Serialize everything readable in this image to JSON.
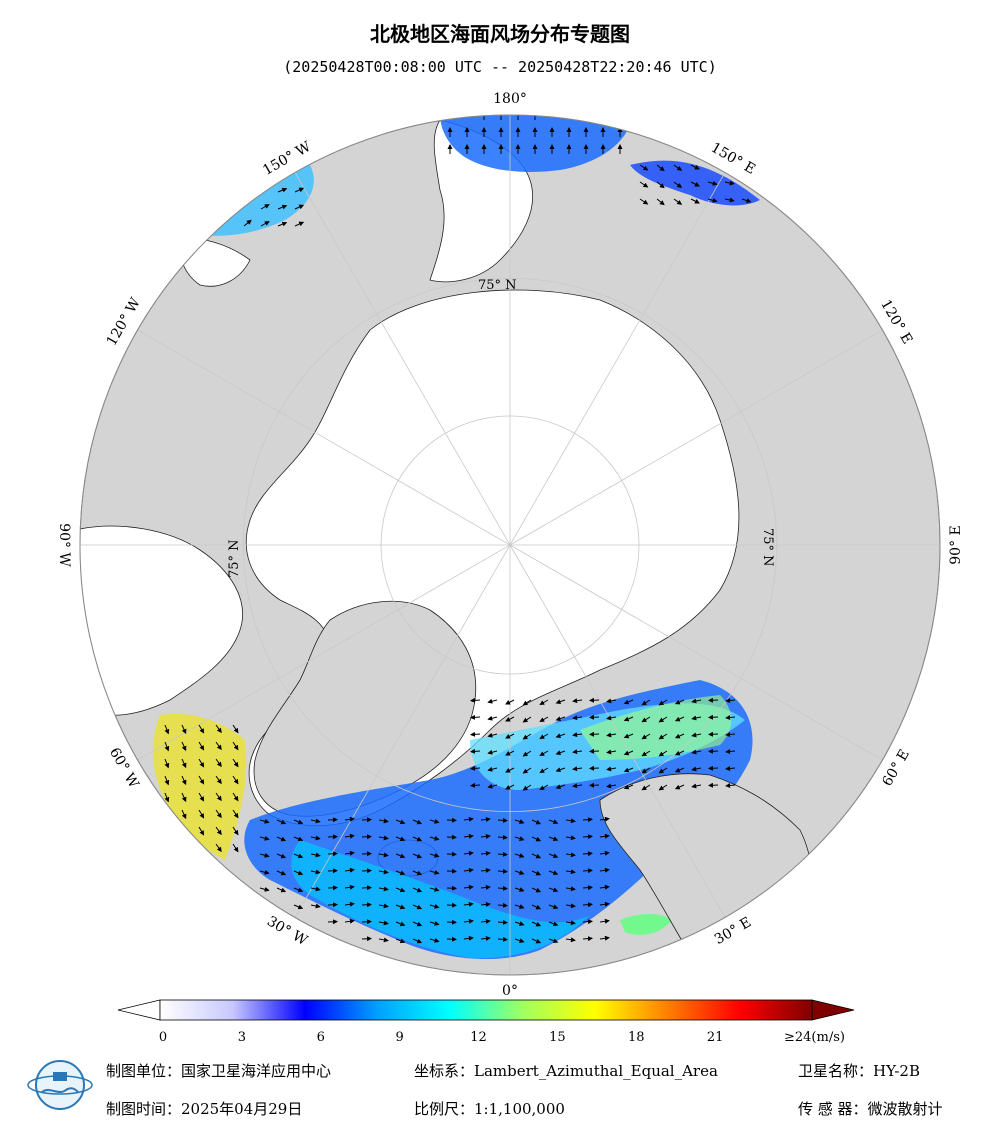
{
  "title": "北极地区海面风场分布专题图",
  "subtitle": "(20250428T00:08:00 UTC -- 20250428T22:20:46 UTC)",
  "map": {
    "longitude_labels": [
      {
        "text": "180°",
        "lon": 180
      },
      {
        "text": "150° E",
        "lon": 150
      },
      {
        "text": "120° E",
        "lon": 120
      },
      {
        "text": "90° E",
        "lon": 90
      },
      {
        "text": "60° E",
        "lon": 60
      },
      {
        "text": "30° E",
        "lon": 30
      },
      {
        "text": "0°",
        "lon": 0
      },
      {
        "text": "30° W",
        "lon": -30
      },
      {
        "text": "60° W",
        "lon": -60
      },
      {
        "text": "90° W",
        "lon": -90
      },
      {
        "text": "120° W",
        "lon": -120
      },
      {
        "text": "150° W",
        "lon": -150
      }
    ],
    "latitude_labels": [
      "75° N",
      "75° N",
      "75° N"
    ],
    "colors": {
      "land": "#d4d4d4",
      "ice": "#ffffff",
      "grid": "#c8c8c8",
      "coast": "#202020"
    }
  },
  "colorbar": {
    "ticks": [
      "0",
      "3",
      "6",
      "9",
      "12",
      "15",
      "18",
      "21",
      "≥24(m/s)"
    ],
    "range": [
      0,
      24
    ],
    "unit": "m/s",
    "stops": [
      "#ffffff",
      "#c8c8ff",
      "#0000ff",
      "#00a0ff",
      "#00ffff",
      "#a0ff60",
      "#ffff00",
      "#ff8000",
      "#ff0000",
      "#800000"
    ]
  },
  "footer": {
    "org_label": "制图单位：国家卫星海洋应用中心",
    "date_label": "制图时间：2025年04月29日",
    "crs_label": "坐标系：Lambert_Azimuthal_Equal_Area",
    "scale_label": "比例尺：1:1,100,000",
    "satellite_label": "卫星名称：HY-2B",
    "sensor_label": "传 感 器：微波散射计"
  }
}
